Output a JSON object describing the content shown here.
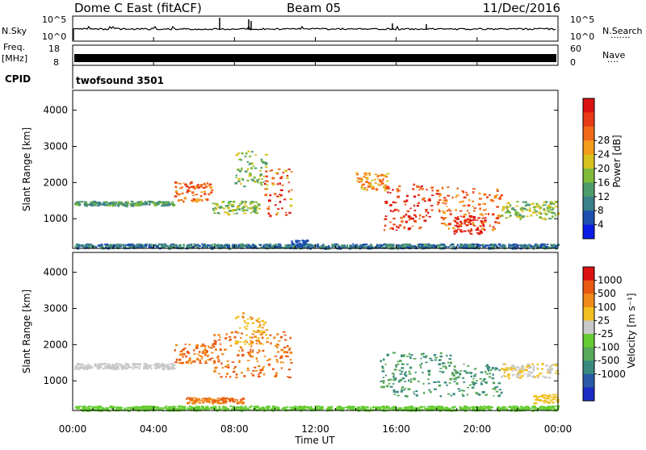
{
  "header": {
    "station": "Dome C East (fitACF)",
    "beam": "Beam 05",
    "date": "11/Dec/2016"
  },
  "nsky_panel": {
    "left_label": "N.Sky",
    "right_label": "N.Search",
    "right_dots": "·······",
    "yticks_left": [
      "10^5",
      "10^0"
    ],
    "yticks_right": [
      "10^5",
      "10^0"
    ]
  },
  "freq_panel": {
    "left_label_line1": "Freq.",
    "left_label_line2": "[MHz]",
    "yticks_left": [
      "18",
      "8"
    ],
    "right_label": "Nave",
    "right_dots": "····",
    "yticks_right": [
      "60",
      "0"
    ]
  },
  "cpid": {
    "label": "CPID",
    "value": "twofsound 3501"
  },
  "chart_data": [
    {
      "type": "heatmap",
      "name": "power",
      "ylabel": "Slant Range [km]",
      "ylim": [
        180,
        4550
      ],
      "yticks": [
        1000,
        2000,
        3000,
        4000
      ],
      "xlim": [
        0,
        24
      ],
      "colorbar": {
        "label": "Power [dB]",
        "ticks": [
          "4",
          "8",
          "12",
          "16",
          "20",
          "24",
          "28"
        ],
        "colors": [
          "#0a1be6",
          "#1f4fae",
          "#3a7f8a",
          "#4e9b6a",
          "#7fba3a",
          "#d8c21e",
          "#f39c1c",
          "#f06a1a",
          "#e83a16",
          "#dd1111"
        ]
      }
    },
    {
      "type": "heatmap",
      "name": "velocity",
      "ylabel": "Slant Range [km]",
      "ylim": [
        180,
        4550
      ],
      "yticks": [
        1000,
        2000,
        3000,
        4000
      ],
      "xlim": [
        0,
        24
      ],
      "colorbar": {
        "label": "Velocity [m s⁻¹]",
        "ticks": [
          "1000",
          "500",
          "100",
          "25",
          "-25",
          "-100",
          "-500",
          "-1000"
        ],
        "colors": [
          "#1b2bc4",
          "#2a5aa6",
          "#3a8a80",
          "#5aa85a",
          "#66cc33",
          "#c8c8c8",
          "#f0c020",
          "#f08a1a",
          "#e85a14",
          "#dd1111"
        ]
      }
    }
  ],
  "xaxis": {
    "ticks": [
      "00:00",
      "04:00",
      "08:00",
      "12:00",
      "16:00",
      "20:00",
      "00:00"
    ],
    "label": "Time UT"
  }
}
